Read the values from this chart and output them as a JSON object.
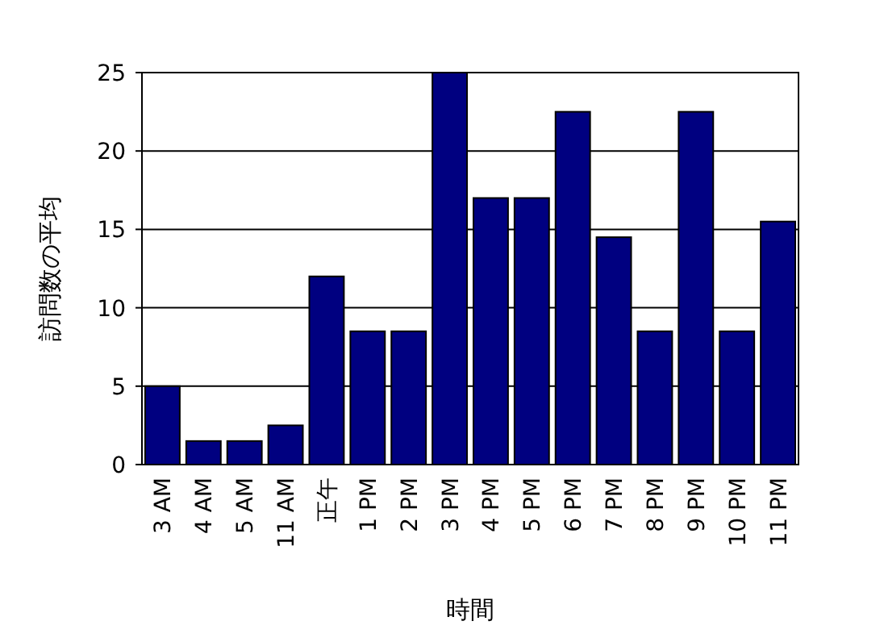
{
  "chart_data": {
    "type": "bar",
    "xlabel": "時間",
    "ylabel": "訪問数の平均",
    "categories": [
      "3 AM",
      "4 AM",
      "5 AM",
      "11 AM",
      "正午",
      "1 PM",
      "2 PM",
      "3 PM",
      "4 PM",
      "5 PM",
      "6 PM",
      "7 PM",
      "8 PM",
      "9 PM",
      "10 PM",
      "11 PM"
    ],
    "values": [
      5,
      1.5,
      1.5,
      2.5,
      12,
      8.5,
      8.5,
      25,
      17,
      17,
      22.5,
      14.5,
      8.5,
      22.5,
      8.5,
      15.5
    ],
    "color": "#000080",
    "ylim": [
      0,
      25
    ],
    "yticks": [
      0,
      5,
      10,
      15,
      20,
      25
    ],
    "grid": "y"
  }
}
